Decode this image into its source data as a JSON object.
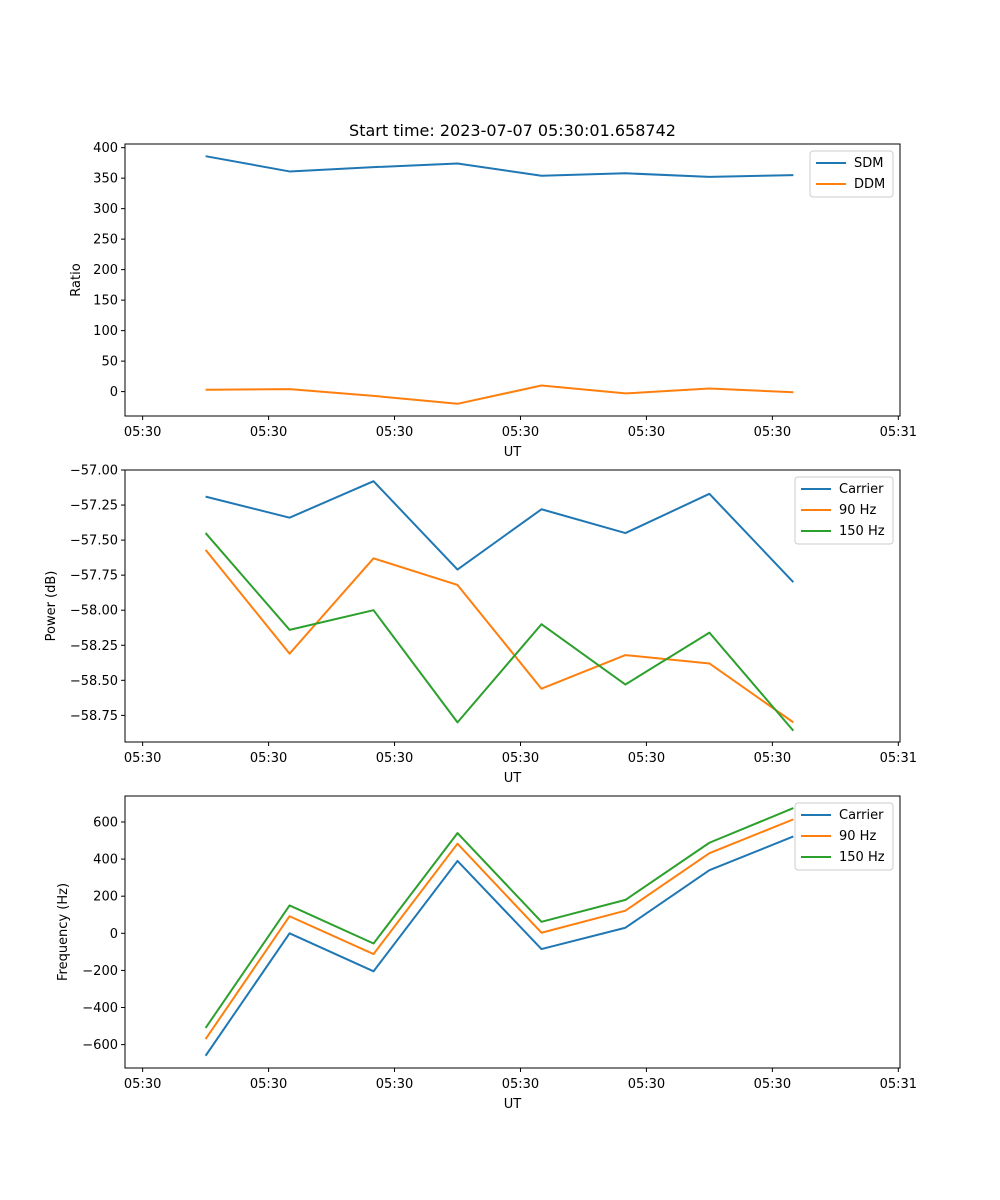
{
  "figure": {
    "title": "Start time: 2023-07-07 05:30:01.658742"
  },
  "chart_data": [
    {
      "type": "line",
      "title": "Start time: 2023-07-07 05:30:01.658742",
      "xlabel": "UT",
      "ylabel": "Ratio",
      "x": [
        0,
        1,
        2,
        3,
        4,
        5,
        6,
        7
      ],
      "x_ticks": [
        -0.75,
        0.75,
        2.25,
        3.75,
        5.25,
        6.75,
        8.25
      ],
      "x_tick_labels": [
        "05:30",
        "05:30",
        "05:30",
        "05:30",
        "05:30",
        "05:30",
        "05:31"
      ],
      "xlim": [
        -0.96,
        8.27
      ],
      "ylim": [
        -40,
        406
      ],
      "y_ticks": [
        0,
        50,
        100,
        150,
        200,
        250,
        300,
        350,
        400
      ],
      "y_tick_labels": [
        "0",
        "50",
        "100",
        "150",
        "200",
        "250",
        "300",
        "350",
        "400"
      ],
      "legend_position": "top-right",
      "series": [
        {
          "name": "SDM",
          "color": "#1f77b4",
          "values": [
            386,
            361,
            368,
            374,
            354,
            358,
            352,
            355
          ]
        },
        {
          "name": "DDM",
          "color": "#ff7f0e",
          "values": [
            3,
            4,
            -7,
            -20,
            10,
            -3,
            5,
            -1
          ]
        }
      ]
    },
    {
      "type": "line",
      "title": "",
      "xlabel": "UT",
      "ylabel": "Power (dB)",
      "x": [
        0,
        1,
        2,
        3,
        4,
        5,
        6,
        7
      ],
      "x_ticks": [
        -0.75,
        0.75,
        2.25,
        3.75,
        5.25,
        6.75,
        8.25
      ],
      "x_tick_labels": [
        "05:30",
        "05:30",
        "05:30",
        "05:30",
        "05:30",
        "05:30",
        "05:31"
      ],
      "xlim": [
        -0.96,
        8.27
      ],
      "ylim": [
        -58.94,
        -57.0
      ],
      "y_ticks": [
        -58.75,
        -58.5,
        -58.25,
        -58.0,
        -57.75,
        -57.5,
        -57.25,
        -57.0
      ],
      "y_tick_labels": [
        "−58.75",
        "−58.50",
        "−58.25",
        "−58.00",
        "−57.75",
        "−57.50",
        "−57.25",
        "−57.00"
      ],
      "legend_position": "top-right",
      "series": [
        {
          "name": "Carrier",
          "color": "#1f77b4",
          "values": [
            -57.19,
            -57.34,
            -57.08,
            -57.71,
            -57.28,
            -57.45,
            -57.17,
            -57.8
          ]
        },
        {
          "name": "90 Hz",
          "color": "#ff7f0e",
          "values": [
            -57.57,
            -58.31,
            -57.63,
            -57.82,
            -58.56,
            -58.32,
            -58.38,
            -58.8
          ]
        },
        {
          "name": "150 Hz",
          "color": "#2ca02c",
          "values": [
            -57.45,
            -58.14,
            -58.0,
            -58.8,
            -58.1,
            -58.53,
            -58.16,
            -58.86
          ]
        }
      ]
    },
    {
      "type": "line",
      "title": "",
      "xlabel": "UT",
      "ylabel": "Frequency (Hz)",
      "x": [
        0,
        1,
        2,
        3,
        4,
        5,
        6,
        7
      ],
      "x_ticks": [
        -0.75,
        0.75,
        2.25,
        3.75,
        5.25,
        6.75,
        8.25
      ],
      "x_tick_labels": [
        "05:30",
        "05:30",
        "05:30",
        "05:30",
        "05:30",
        "05:30",
        "05:31"
      ],
      "xlim": [
        -0.96,
        8.27
      ],
      "ylim": [
        -726,
        740
      ],
      "y_ticks": [
        -600,
        -400,
        -200,
        0,
        200,
        400,
        600
      ],
      "y_tick_labels": [
        "−600",
        "−400",
        "−200",
        "0",
        "200",
        "400",
        "600"
      ],
      "legend_position": "top-right",
      "series": [
        {
          "name": "Carrier",
          "color": "#1f77b4",
          "values": [
            -660,
            0,
            -205,
            390,
            -85,
            30,
            340,
            522
          ]
        },
        {
          "name": "90 Hz",
          "color": "#ff7f0e",
          "values": [
            -570,
            92,
            -112,
            483,
            3,
            122,
            432,
            614
          ]
        },
        {
          "name": "150 Hz",
          "color": "#2ca02c",
          "values": [
            -510,
            150,
            -55,
            540,
            62,
            180,
            488,
            675
          ]
        }
      ]
    }
  ]
}
